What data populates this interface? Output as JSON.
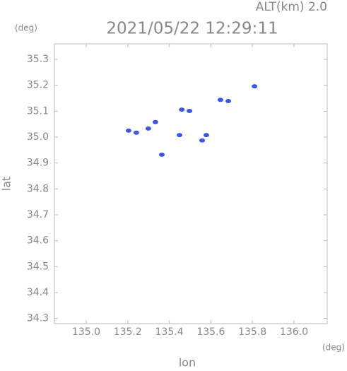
{
  "chart_data": {
    "type": "scatter",
    "title": "2021/05/22 12:29:11",
    "altitude_label": "ALT(km) 2.0",
    "x_label": "lon",
    "y_label": "lat",
    "x_unit": "(deg)",
    "y_unit": "(deg)",
    "x": [
      135.81,
      135.684,
      135.646,
      135.497,
      135.46,
      135.333,
      135.299,
      135.241,
      135.204,
      135.449,
      135.558,
      135.364,
      135.578
    ],
    "y": [
      35.196,
      35.139,
      35.144,
      35.101,
      35.106,
      35.058,
      35.033,
      35.017,
      35.025,
      35.008,
      34.987,
      34.932,
      35.008
    ],
    "color": "#3a55ee",
    "xlim": [
      134.847,
      136.16
    ],
    "ylim": [
      34.28,
      35.36
    ],
    "xticks": [
      {
        "value": 135,
        "label": "135.0"
      },
      135.2,
      135.4,
      135.6,
      135.8,
      {
        "value": 136,
        "label": "136.0"
      }
    ],
    "yticks": [
      35.3,
      35.2,
      35.1,
      {
        "value": 35,
        "label": "35.0"
      },
      34.9,
      34.8,
      34.7,
      34.6,
      34.5,
      34.4,
      34.3
    ]
  }
}
